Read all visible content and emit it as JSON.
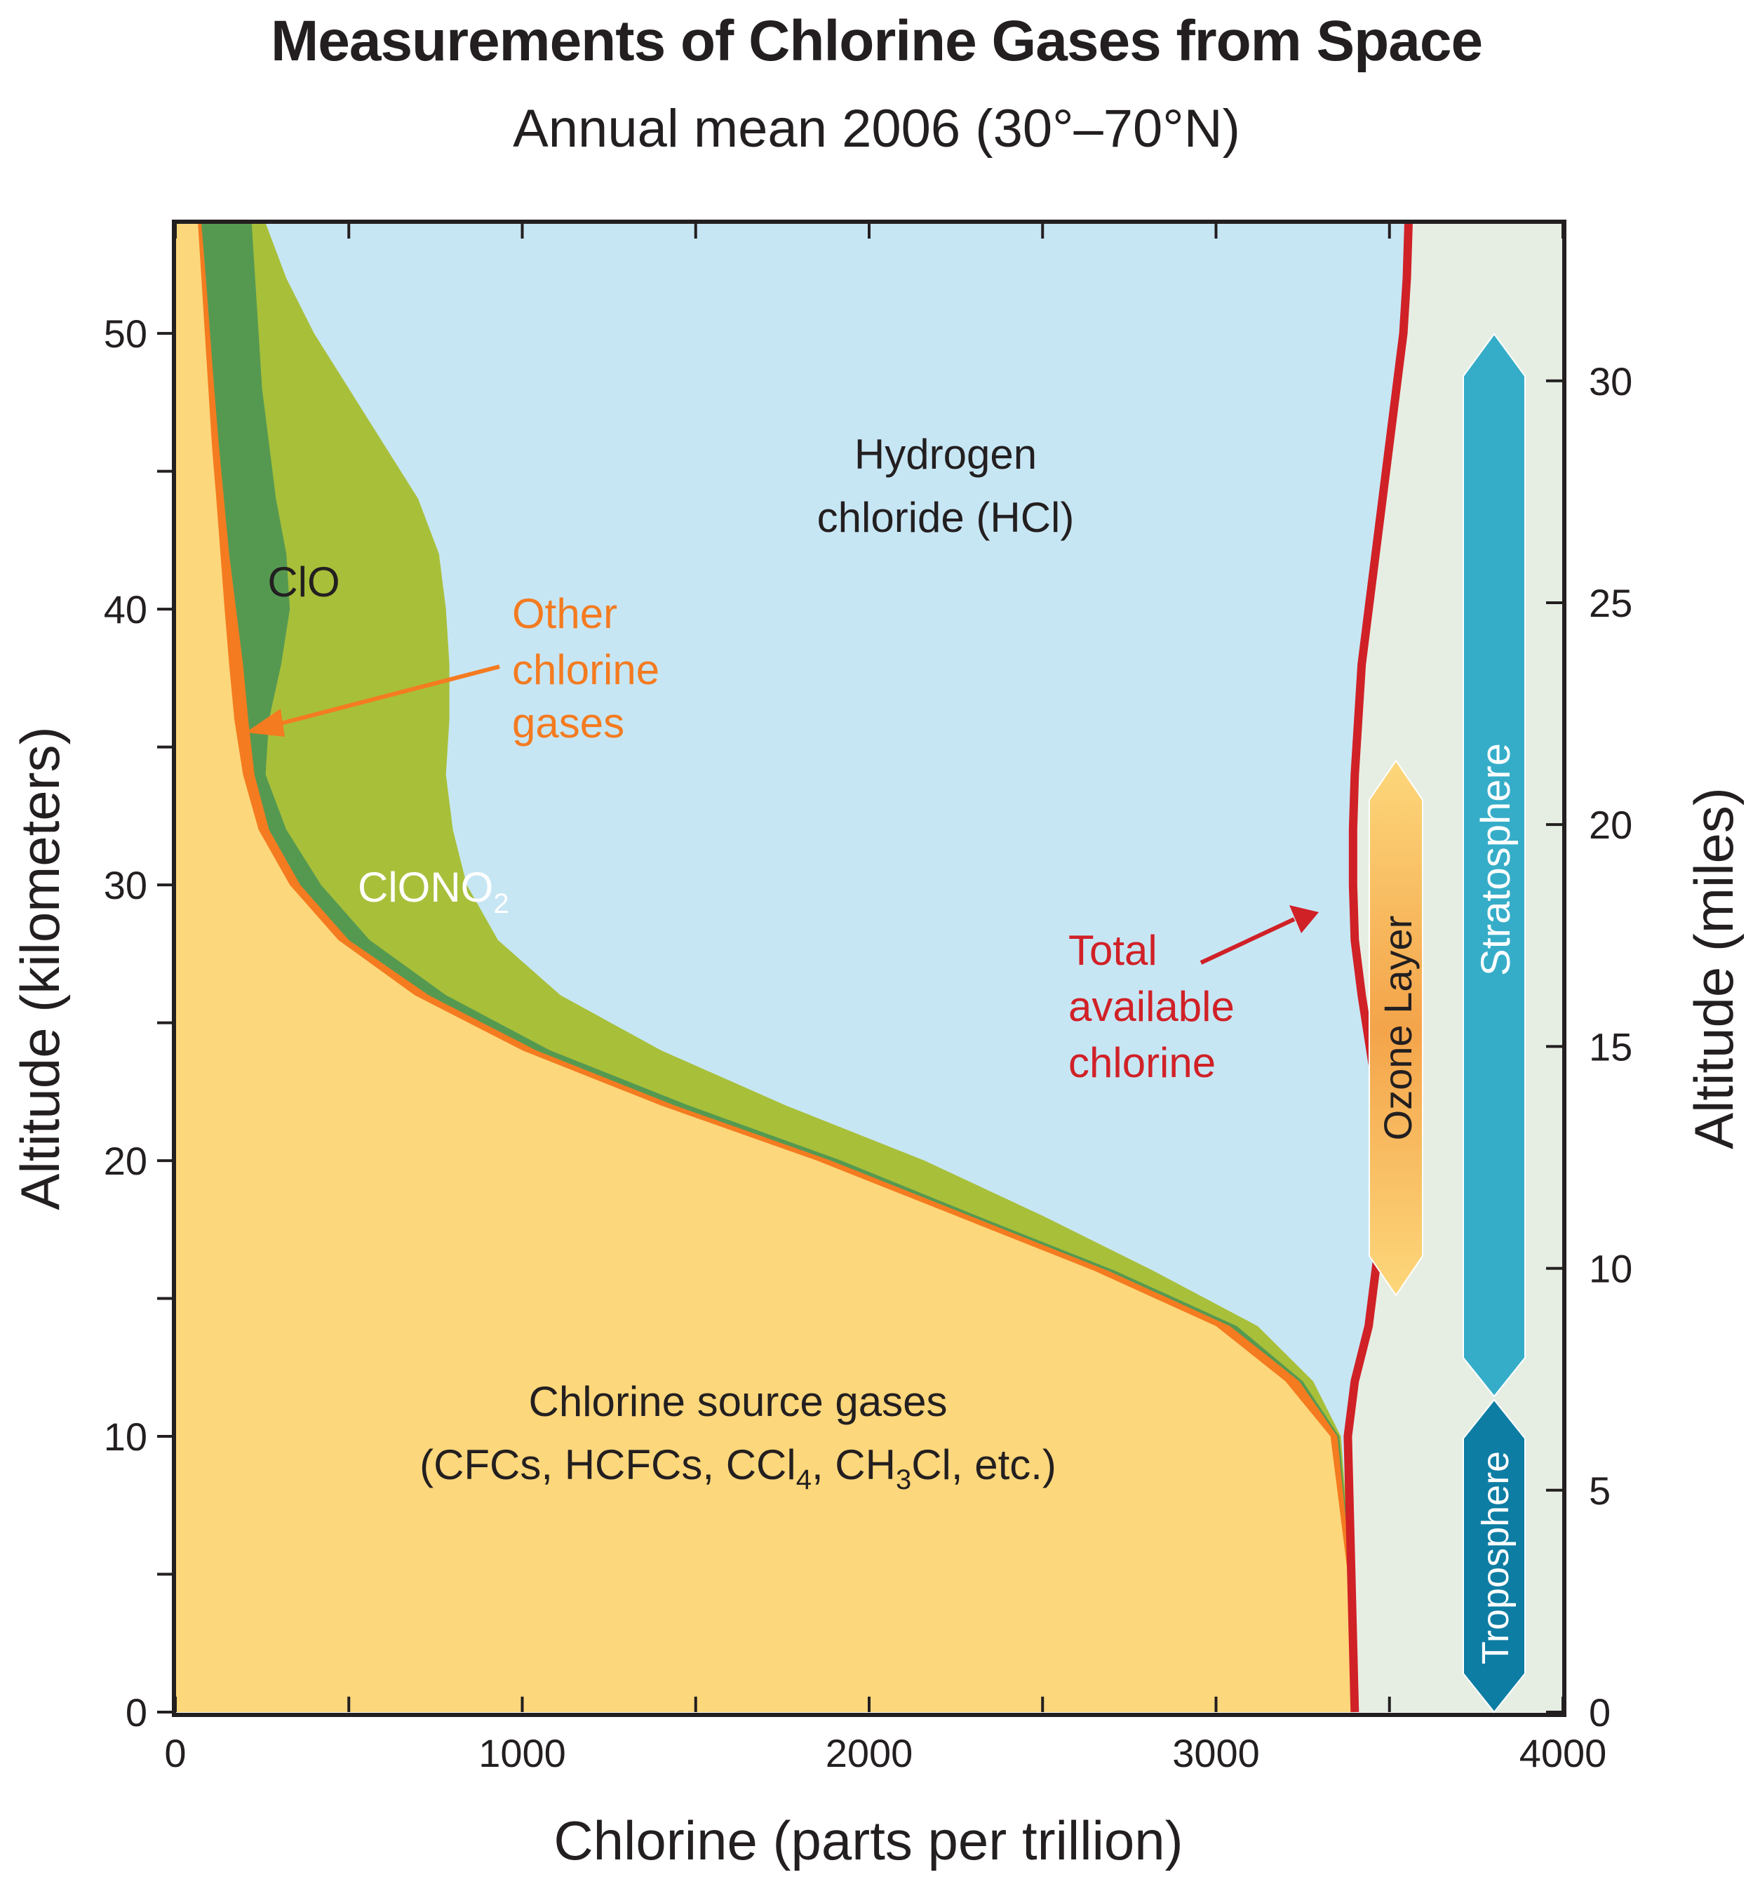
{
  "title": "Measurements of Chlorine Gases from Space",
  "subtitle": "Annual mean 2006 (30°–70°N)",
  "chart_data": {
    "type": "area",
    "xlabel": "Chlorine (parts per trillion)",
    "ylabel": "Altitude (kilometers)",
    "y2label": "Altitude (miles)",
    "xlim": [
      0,
      4000
    ],
    "ylim": [
      0,
      54
    ],
    "x_ticks": [
      0,
      1000,
      2000,
      3000,
      4000
    ],
    "y_ticks": [
      0,
      10,
      20,
      30,
      40,
      50
    ],
    "y2_ticks": [
      0,
      5,
      10,
      15,
      20,
      25,
      30
    ],
    "altitude_km": [
      0,
      5,
      10,
      12,
      14,
      16,
      18,
      20,
      22,
      24,
      26,
      28,
      30,
      32,
      34,
      36,
      38,
      40,
      42,
      44,
      46,
      48,
      50,
      52,
      54
    ],
    "series": [
      {
        "name": "Chlorine source gases (CFCs, HCFCs, CCl4, CH3Cl, etc.)",
        "color": "#fdd77b",
        "cumulative_x": [
          3400,
          3380,
          3330,
          3200,
          3000,
          2650,
          2250,
          1850,
          1400,
          1000,
          690,
          470,
          330,
          240,
          195,
          170,
          155,
          142,
          130,
          118,
          105,
          95,
          85,
          75,
          65
        ]
      },
      {
        "name": "Other chlorine gases",
        "color": "#f47b20",
        "cumulative_x": [
          3400,
          3390,
          3350,
          3240,
          3040,
          2690,
          2290,
          1890,
          1440,
          1040,
          730,
          500,
          360,
          270,
          228,
          210,
          195,
          175,
          155,
          140,
          125,
          112,
          100,
          88,
          75
        ]
      },
      {
        "name": "ClONO2",
        "color": "#559951",
        "cumulative_x": [
          3400,
          3390,
          3355,
          3250,
          3060,
          2710,
          2310,
          1920,
          1480,
          1080,
          780,
          560,
          420,
          320,
          260,
          270,
          305,
          330,
          320,
          290,
          270,
          250,
          240,
          230,
          220
        ]
      },
      {
        "name": "ClO",
        "color": "#a8bf3a",
        "cumulative_x": [
          3400,
          3390,
          3360,
          3280,
          3120,
          2820,
          2500,
          2160,
          1760,
          1400,
          1110,
          930,
          840,
          800,
          780,
          790,
          790,
          780,
          760,
          700,
          600,
          500,
          400,
          320,
          260
        ]
      },
      {
        "name": "Hydrogen chloride (HCl)",
        "color": "#c7e6f4",
        "cumulative_x": [
          3400,
          3390,
          3380,
          3400,
          3440,
          3460,
          3480,
          3485,
          3470,
          3445,
          3420,
          3400,
          3395,
          3395,
          3400,
          3410,
          3420,
          3440,
          3460,
          3480,
          3500,
          3520,
          3540,
          3550,
          3555
        ]
      }
    ],
    "total_available_chlorine": {
      "name": "Total available chlorine",
      "color": "#d02127",
      "x": [
        3400,
        3390,
        3380,
        3400,
        3440,
        3460,
        3480,
        3485,
        3470,
        3445,
        3420,
        3400,
        3395,
        3395,
        3400,
        3410,
        3420,
        3440,
        3460,
        3480,
        3500,
        3520,
        3540,
        3550,
        3555
      ]
    },
    "annotations": {
      "hcl_label": [
        "Hydrogen",
        "chloride (HCl)"
      ],
      "clo_label": "ClO",
      "clono2_label_main": "ClONO",
      "clono2_label_sub": "2",
      "other_label": [
        "Other",
        "chlorine",
        "gases"
      ],
      "total_label": [
        "Total",
        "available",
        "chlorine"
      ],
      "source_label_1": "Chlorine source gases",
      "source_label_2a": "(CFCs, HCFCs, CCl",
      "source_label_2b": "4",
      "source_label_2c": ", CH",
      "source_label_2d": "3",
      "source_label_2e": "Cl, etc.)"
    },
    "bands": [
      {
        "name": "Ozone Layer",
        "from_km": 15.5,
        "to_km": 34.5
      },
      {
        "name": "Stratosphere",
        "from_km": 11.5,
        "to_km": 50
      },
      {
        "name": "Troposphere",
        "from_km": 0,
        "to_km": 11.5
      }
    ]
  }
}
